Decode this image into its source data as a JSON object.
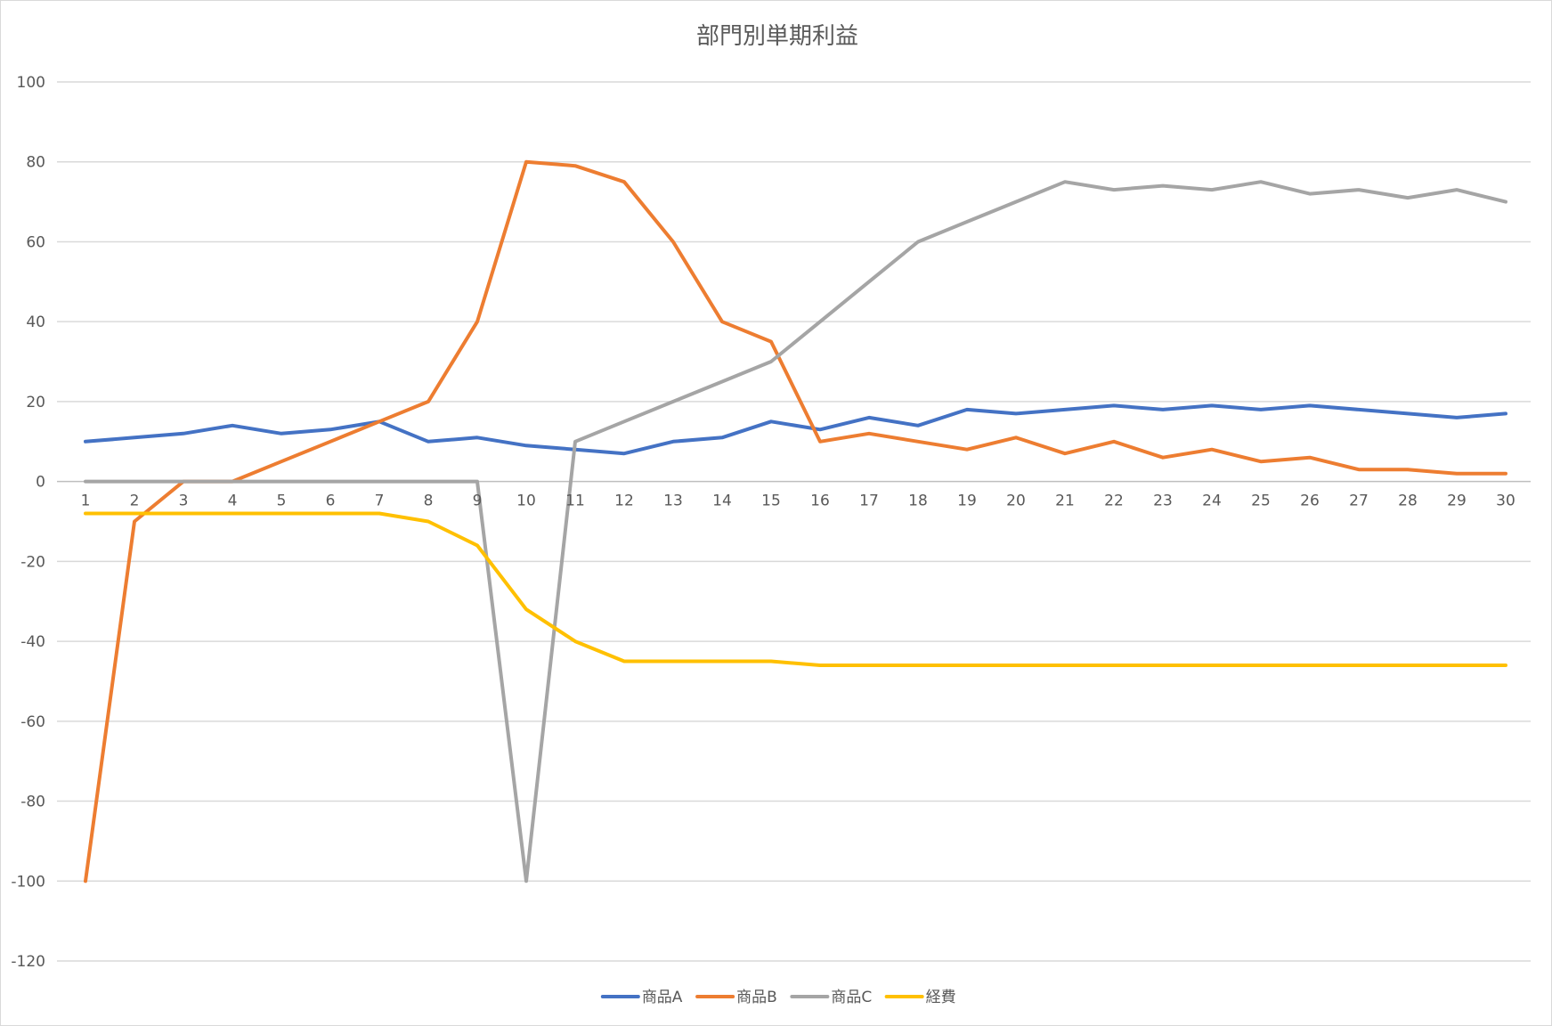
{
  "chart_data": {
    "type": "line",
    "title": "部門別単期利益",
    "xlabel": "",
    "ylabel": "",
    "categories": [
      "1",
      "2",
      "3",
      "4",
      "5",
      "6",
      "7",
      "8",
      "9",
      "10",
      "11",
      "12",
      "13",
      "14",
      "15",
      "16",
      "17",
      "18",
      "19",
      "20",
      "21",
      "22",
      "23",
      "24",
      "25",
      "26",
      "27",
      "28",
      "29",
      "30"
    ],
    "ylim": [
      -120,
      100
    ],
    "yticks": [
      100,
      80,
      60,
      40,
      20,
      0,
      -20,
      -40,
      -60,
      -80,
      -100,
      -120
    ],
    "grid": true,
    "legend_position": "bottom",
    "series": [
      {
        "name": "商品A",
        "color": "#4472C4",
        "values": [
          10,
          11,
          12,
          14,
          12,
          13,
          15,
          10,
          11,
          9,
          8,
          7,
          10,
          11,
          15,
          13,
          16,
          14,
          18,
          17,
          18,
          19,
          18,
          19,
          18,
          19,
          18,
          17,
          16,
          17
        ]
      },
      {
        "name": "商品B",
        "color": "#ED7D31",
        "values": [
          -100,
          -10,
          0,
          0,
          5,
          10,
          15,
          20,
          40,
          80,
          79,
          75,
          60,
          40,
          35,
          10,
          12,
          10,
          8,
          11,
          7,
          10,
          6,
          8,
          5,
          6,
          3,
          3,
          2,
          2
        ]
      },
      {
        "name": "商品C",
        "color": "#A5A5A5",
        "values": [
          0,
          0,
          0,
          0,
          0,
          0,
          0,
          0,
          0,
          -100,
          10,
          15,
          20,
          25,
          30,
          40,
          50,
          60,
          65,
          70,
          75,
          73,
          74,
          73,
          75,
          72,
          73,
          71,
          73,
          70
        ]
      },
      {
        "name": "経費",
        "color": "#FFC000",
        "values": [
          -8,
          -8,
          -8,
          -8,
          -8,
          -8,
          -8,
          -10,
          -16,
          -32,
          -40,
          -45,
          -45,
          -45,
          -45,
          -46,
          -46,
          -46,
          -46,
          -46,
          -46,
          -46,
          -46,
          -46,
          -46,
          -46,
          -46,
          -46,
          -46,
          -46
        ]
      }
    ]
  }
}
